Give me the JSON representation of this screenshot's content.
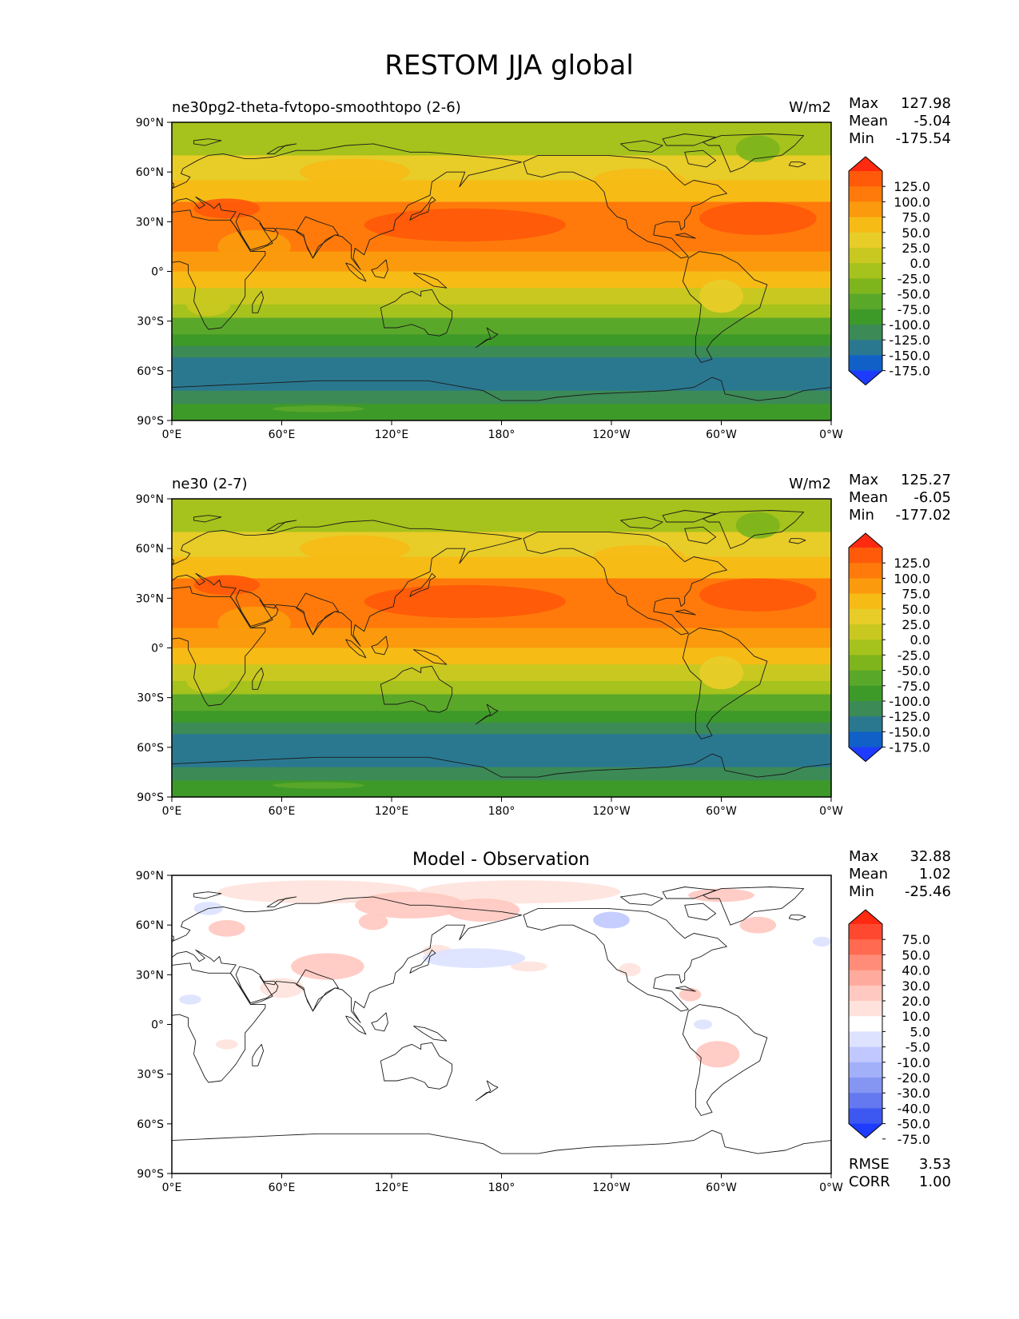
{
  "figure": {
    "title": "RESTOM JJA global"
  },
  "panels": [
    {
      "id": "model",
      "left_title": "ne30pg2-theta-fvtopo-smoothtopo (2-6)",
      "right_title": "W/m2",
      "stats": [
        {
          "label": "Max",
          "value": "127.98"
        },
        {
          "label": "Mean",
          "value": "-5.04"
        },
        {
          "label": "Min",
          "value": "-175.54"
        }
      ],
      "colorbar": {
        "labels": [
          "125.0",
          "100.0",
          "75.0",
          "50.0",
          "25.0",
          "0.0",
          "-25.0",
          "-50.0",
          "-75.0",
          "-100.0",
          "-125.0",
          "-150.0",
          "-175.0"
        ],
        "colors": [
          "#ff2a10",
          "#ff5a0a",
          "#ff7a0a",
          "#fb9a0c",
          "#f7bb16",
          "#e8cc28",
          "#c8c820",
          "#a6c21c",
          "#7eb41c",
          "#5aa82a",
          "#3e9a28",
          "#3c8a56",
          "#2a7890",
          "#1060c8",
          "#1e3cff"
        ]
      },
      "bands": [
        {
          "lat": [
            90,
            70
          ],
          "value": -40
        },
        {
          "lat": [
            70,
            55
          ],
          "value": 15
        },
        {
          "lat": [
            55,
            42
          ],
          "value": 40
        },
        {
          "lat": [
            42,
            12
          ],
          "value": 90
        },
        {
          "lat": [
            12,
            0
          ],
          "value": 60
        },
        {
          "lat": [
            0,
            -10
          ],
          "value": 30
        },
        {
          "lat": [
            -10,
            -20
          ],
          "value": 0
        },
        {
          "lat": [
            -20,
            -28
          ],
          "value": -40
        },
        {
          "lat": [
            -28,
            -38
          ],
          "value": -85
        },
        {
          "lat": [
            -38,
            -45
          ],
          "value": -115
        },
        {
          "lat": [
            -45,
            -52
          ],
          "value": -140
        },
        {
          "lat": [
            -52,
            -72
          ],
          "value": -165
        },
        {
          "lat": [
            -72,
            -80
          ],
          "value": -140
        },
        {
          "lat": [
            -80,
            -90
          ],
          "value": -115
        }
      ]
    },
    {
      "id": "reference",
      "left_title": "ne30 (2-7)",
      "right_title": "W/m2",
      "stats": [
        {
          "label": "Max",
          "value": "125.27"
        },
        {
          "label": "Mean",
          "value": "-6.05"
        },
        {
          "label": "Min",
          "value": "-177.02"
        }
      ],
      "colorbar": {
        "labels": [
          "125.0",
          "100.0",
          "75.0",
          "50.0",
          "25.0",
          "0.0",
          "-25.0",
          "-50.0",
          "-75.0",
          "-100.0",
          "-125.0",
          "-150.0",
          "-175.0"
        ],
        "colors": [
          "#ff2a10",
          "#ff5a0a",
          "#ff7a0a",
          "#fb9a0c",
          "#f7bb16",
          "#e8cc28",
          "#c8c820",
          "#a6c21c",
          "#7eb41c",
          "#5aa82a",
          "#3e9a28",
          "#3c8a56",
          "#2a7890",
          "#1060c8",
          "#1e3cff"
        ]
      },
      "bands": [
        {
          "lat": [
            90,
            70
          ],
          "value": -40
        },
        {
          "lat": [
            70,
            55
          ],
          "value": 15
        },
        {
          "lat": [
            55,
            42
          ],
          "value": 40
        },
        {
          "lat": [
            42,
            12
          ],
          "value": 85
        },
        {
          "lat": [
            12,
            0
          ],
          "value": 60
        },
        {
          "lat": [
            0,
            -10
          ],
          "value": 30
        },
        {
          "lat": [
            -10,
            -20
          ],
          "value": 0
        },
        {
          "lat": [
            -20,
            -28
          ],
          "value": -40
        },
        {
          "lat": [
            -28,
            -38
          ],
          "value": -85
        },
        {
          "lat": [
            -38,
            -45
          ],
          "value": -115
        },
        {
          "lat": [
            -45,
            -52
          ],
          "value": -140
        },
        {
          "lat": [
            -52,
            -72
          ],
          "value": -165
        },
        {
          "lat": [
            -72,
            -80
          ],
          "value": -140
        },
        {
          "lat": [
            -80,
            -90
          ],
          "value": -115
        }
      ]
    },
    {
      "id": "diff",
      "center_title": "Model - Observation",
      "stats": [
        {
          "label": "Max",
          "value": "32.88"
        },
        {
          "label": "Mean",
          "value": "1.02"
        },
        {
          "label": "Min",
          "value": "-25.46"
        }
      ],
      "extra_stats": [
        {
          "label": "RMSE",
          "value": "3.53"
        },
        {
          "label": "CORR",
          "value": "1.00"
        }
      ],
      "colorbar": {
        "labels": [
          "75.0",
          "50.0",
          "40.0",
          "30.0",
          "20.0",
          "10.0",
          "5.0",
          "-5.0",
          "-10.0",
          "-20.0",
          "-30.0",
          "-40.0",
          "-50.0",
          "-75.0"
        ],
        "colors": [
          "#ff2a10",
          "#ff4830",
          "#ff6a50",
          "#ff8c78",
          "#ffaa9c",
          "#ffc8c0",
          "#ffe2dc",
          "#ffffff",
          "#dde2ff",
          "#c0c8ff",
          "#a2b0fa",
          "#8496f2",
          "#6478f0",
          "#3c58f0",
          "#1e3cff"
        ]
      }
    }
  ],
  "axes": {
    "lat_labels": [
      "90°N",
      "60°N",
      "30°N",
      "0°",
      "30°S",
      "60°S",
      "90°S"
    ],
    "lat_values": [
      90,
      60,
      30,
      0,
      -30,
      -60,
      -90
    ],
    "lon_labels": [
      "0°E",
      "60°E",
      "120°E",
      "180°",
      "120°W",
      "60°W",
      "0°W"
    ],
    "lon_values": [
      0,
      60,
      120,
      180,
      240,
      300,
      360
    ]
  },
  "colors": {
    "background": "#ffffff",
    "frame": "#000000",
    "coastline": "#1a1a1a"
  }
}
